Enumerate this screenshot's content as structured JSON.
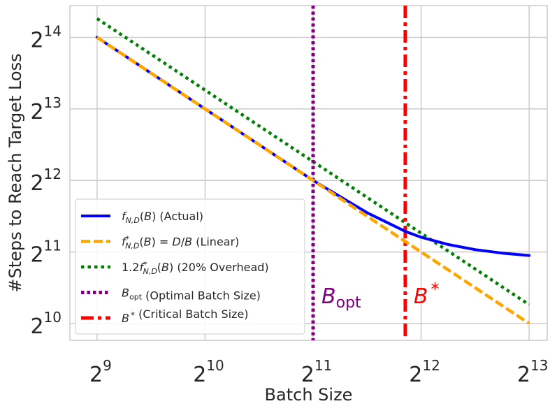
{
  "chart_data": {
    "type": "line",
    "xlabel": "Batch Size",
    "ylabel": "#Steps to Reach Target Loss",
    "x_scale": "log2",
    "y_scale": "log2",
    "x_ticks": [
      {
        "base": "2",
        "exp": "9",
        "value": 512
      },
      {
        "base": "2",
        "exp": "10",
        "value": 1024
      },
      {
        "base": "2",
        "exp": "11",
        "value": 2048
      },
      {
        "base": "2",
        "exp": "12",
        "value": 4096
      },
      {
        "base": "2",
        "exp": "13",
        "value": 8192
      }
    ],
    "y_ticks": [
      {
        "base": "2",
        "exp": "10",
        "value": 1024
      },
      {
        "base": "2",
        "exp": "11",
        "value": 2048
      },
      {
        "base": "2",
        "exp": "12",
        "value": 4096
      },
      {
        "base": "2",
        "exp": "13",
        "value": 8192
      },
      {
        "base": "2",
        "exp": "14",
        "value": 16384
      }
    ],
    "xlim": [
      430,
      9200
    ],
    "ylim": [
      870,
      22300
    ],
    "grid": true,
    "legend_position": "lower-left",
    "series": [
      {
        "key": "actual",
        "label": "(Actual)",
        "math": "f_{N,D}(B)",
        "color": "#0000ff",
        "style": "solid",
        "x": [
          512,
          724,
          1024,
          1448,
          2048,
          2896,
          3700,
          4096,
          4870,
          5790,
          6890,
          8192
        ],
        "y": [
          16384,
          11585,
          8192,
          5793,
          4096,
          2997,
          2500,
          2363,
          2201,
          2095,
          2025,
          1980
        ]
      },
      {
        "key": "linear",
        "label": "(Linear)",
        "math": "f*_{N,D}(B) = D/B",
        "color": "#ffa500",
        "style": "dashed",
        "x": [
          512,
          8192
        ],
        "y": [
          16384,
          1024
        ]
      },
      {
        "key": "overhead",
        "label": "(20% Overhead)",
        "math": "1.2f*_{N,D}(B)",
        "color": "#008000",
        "style": "dotted",
        "x": [
          512,
          8192
        ],
        "y": [
          19661,
          1229
        ]
      },
      {
        "key": "bopt",
        "label": "(Optimal Batch Size)",
        "math": "B_opt",
        "color": "#800080",
        "style": "dotted-vertical",
        "x_value": 2048
      },
      {
        "key": "bstar",
        "label": "(Critical Batch Size)",
        "math": "B*",
        "color": "#ff0000",
        "style": "dashdot-vertical",
        "x_value": 3700
      }
    ],
    "annotations": [
      {
        "key": "bopt",
        "text_main": "B",
        "text_sub": "opt",
        "color": "#800080"
      },
      {
        "key": "bstar",
        "text_main": "B",
        "text_sup": "*",
        "color": "#ff0000"
      }
    ]
  }
}
